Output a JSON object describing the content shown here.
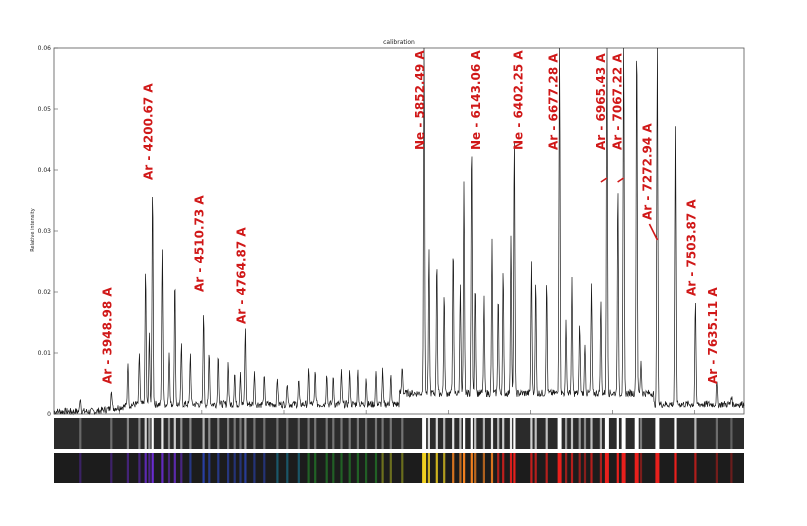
{
  "chart_data": {
    "type": "line",
    "title": "calibration",
    "xlabel": "",
    "ylabel": "Relative intensity",
    "ylim": [
      0,
      0.06
    ],
    "yticks": [
      "0",
      "0.01",
      "0.02",
      "0.03",
      "0.04",
      "0.05",
      "0.06"
    ],
    "xlim": [
      3600,
      7800
    ],
    "grid": false,
    "peaks": [
      {
        "x": 3760,
        "y": 0.0025
      },
      {
        "x": 3948.98,
        "y": 0.0035
      },
      {
        "x": 4050,
        "y": 0.0075
      },
      {
        "x": 4120,
        "y": 0.0085
      },
      {
        "x": 4158,
        "y": 0.0225
      },
      {
        "x": 4181,
        "y": 0.0115
      },
      {
        "x": 4200.67,
        "y": 0.0365
      },
      {
        "x": 4260,
        "y": 0.026
      },
      {
        "x": 4300,
        "y": 0.009
      },
      {
        "x": 4335,
        "y": 0.0205
      },
      {
        "x": 4375,
        "y": 0.01
      },
      {
        "x": 4430,
        "y": 0.0085
      },
      {
        "x": 4510.73,
        "y": 0.0155
      },
      {
        "x": 4545,
        "y": 0.009
      },
      {
        "x": 4600,
        "y": 0.0085
      },
      {
        "x": 4660,
        "y": 0.007
      },
      {
        "x": 4700,
        "y": 0.0055
      },
      {
        "x": 4735,
        "y": 0.0055
      },
      {
        "x": 4764.87,
        "y": 0.0125
      },
      {
        "x": 4820,
        "y": 0.0055
      },
      {
        "x": 4880,
        "y": 0.0045
      },
      {
        "x": 4960,
        "y": 0.0045
      },
      {
        "x": 5020,
        "y": 0.004
      },
      {
        "x": 5090,
        "y": 0.004
      },
      {
        "x": 5150,
        "y": 0.0055
      },
      {
        "x": 5190,
        "y": 0.0055
      },
      {
        "x": 5260,
        "y": 0.0055
      },
      {
        "x": 5300,
        "y": 0.0045
      },
      {
        "x": 5350,
        "y": 0.0055
      },
      {
        "x": 5400,
        "y": 0.0055
      },
      {
        "x": 5450,
        "y": 0.0055
      },
      {
        "x": 5500,
        "y": 0.0045
      },
      {
        "x": 5560,
        "y": 0.0055
      },
      {
        "x": 5600,
        "y": 0.0055
      },
      {
        "x": 5650,
        "y": 0.005
      },
      {
        "x": 5720,
        "y": 0.0045
      },
      {
        "x": 5852.49,
        "y": 0.06
      },
      {
        "x": 5882,
        "y": 0.0235
      },
      {
        "x": 5930,
        "y": 0.0225
      },
      {
        "x": 5975,
        "y": 0.0165
      },
      {
        "x": 6030,
        "y": 0.0245
      },
      {
        "x": 6074,
        "y": 0.0185
      },
      {
        "x": 6096,
        "y": 0.0345
      },
      {
        "x": 6143.06,
        "y": 0.0425
      },
      {
        "x": 6164,
        "y": 0.0185
      },
      {
        "x": 6217,
        "y": 0.0155
      },
      {
        "x": 6266,
        "y": 0.0255
      },
      {
        "x": 6304,
        "y": 0.0165
      },
      {
        "x": 6334,
        "y": 0.0205
      },
      {
        "x": 6382,
        "y": 0.0265
      },
      {
        "x": 6402.25,
        "y": 0.043
      },
      {
        "x": 6506,
        "y": 0.0215
      },
      {
        "x": 6532,
        "y": 0.0185
      },
      {
        "x": 6599,
        "y": 0.0185
      },
      {
        "x": 6677.28,
        "y": 0.06
      },
      {
        "x": 6717,
        "y": 0.012
      },
      {
        "x": 6753,
        "y": 0.0185
      },
      {
        "x": 6800,
        "y": 0.0115
      },
      {
        "x": 6832,
        "y": 0.0085
      },
      {
        "x": 6872,
        "y": 0.018
      },
      {
        "x": 6929,
        "y": 0.0155
      },
      {
        "x": 6965.43,
        "y": 0.06
      },
      {
        "x": 7032,
        "y": 0.034
      },
      {
        "x": 7067.22,
        "y": 0.06
      },
      {
        "x": 7147,
        "y": 0.06
      },
      {
        "x": 7173,
        "y": 0.0055
      },
      {
        "x": 7272.94,
        "y": 0.06
      },
      {
        "x": 7383,
        "y": 0.045
      },
      {
        "x": 7503.87,
        "y": 0.0175
      },
      {
        "x": 7635.11,
        "y": 0.0035
      },
      {
        "x": 7723,
        "y": 0.0015
      }
    ],
    "annotations": [
      {
        "label": "Ar - 3948.98 A",
        "x": 3948.98
      },
      {
        "label": "Ar - 4200.67 A",
        "x": 4200.67
      },
      {
        "label": "Ar - 4510.73 A",
        "x": 4510.73
      },
      {
        "label": "Ar - 4764.87 A",
        "x": 4764.87
      },
      {
        "label": "Ne - 5852.49 A",
        "x": 5852.49
      },
      {
        "label": "Ne - 6143.06 A",
        "x": 6143.06
      },
      {
        "label": "Ne - 6402.25 A",
        "x": 6402.25
      },
      {
        "label": "Ar - 6677.28 A",
        "x": 6677.28
      },
      {
        "label": "Ar - 6965.43 A",
        "x": 6965.43
      },
      {
        "label": "Ar - 7067.22 A",
        "x": 7067.22
      },
      {
        "label": "Ar - 7272.94 A",
        "x": 7272.94
      },
      {
        "label": "Ar - 7503.87 A",
        "x": 7503.87
      },
      {
        "label": "Ar - 7635.11 A",
        "x": 7635.11
      }
    ]
  },
  "colors": {
    "annotation": "#d01818",
    "line": "#1a1a1a",
    "strip_bg": "#2b2b2b"
  }
}
